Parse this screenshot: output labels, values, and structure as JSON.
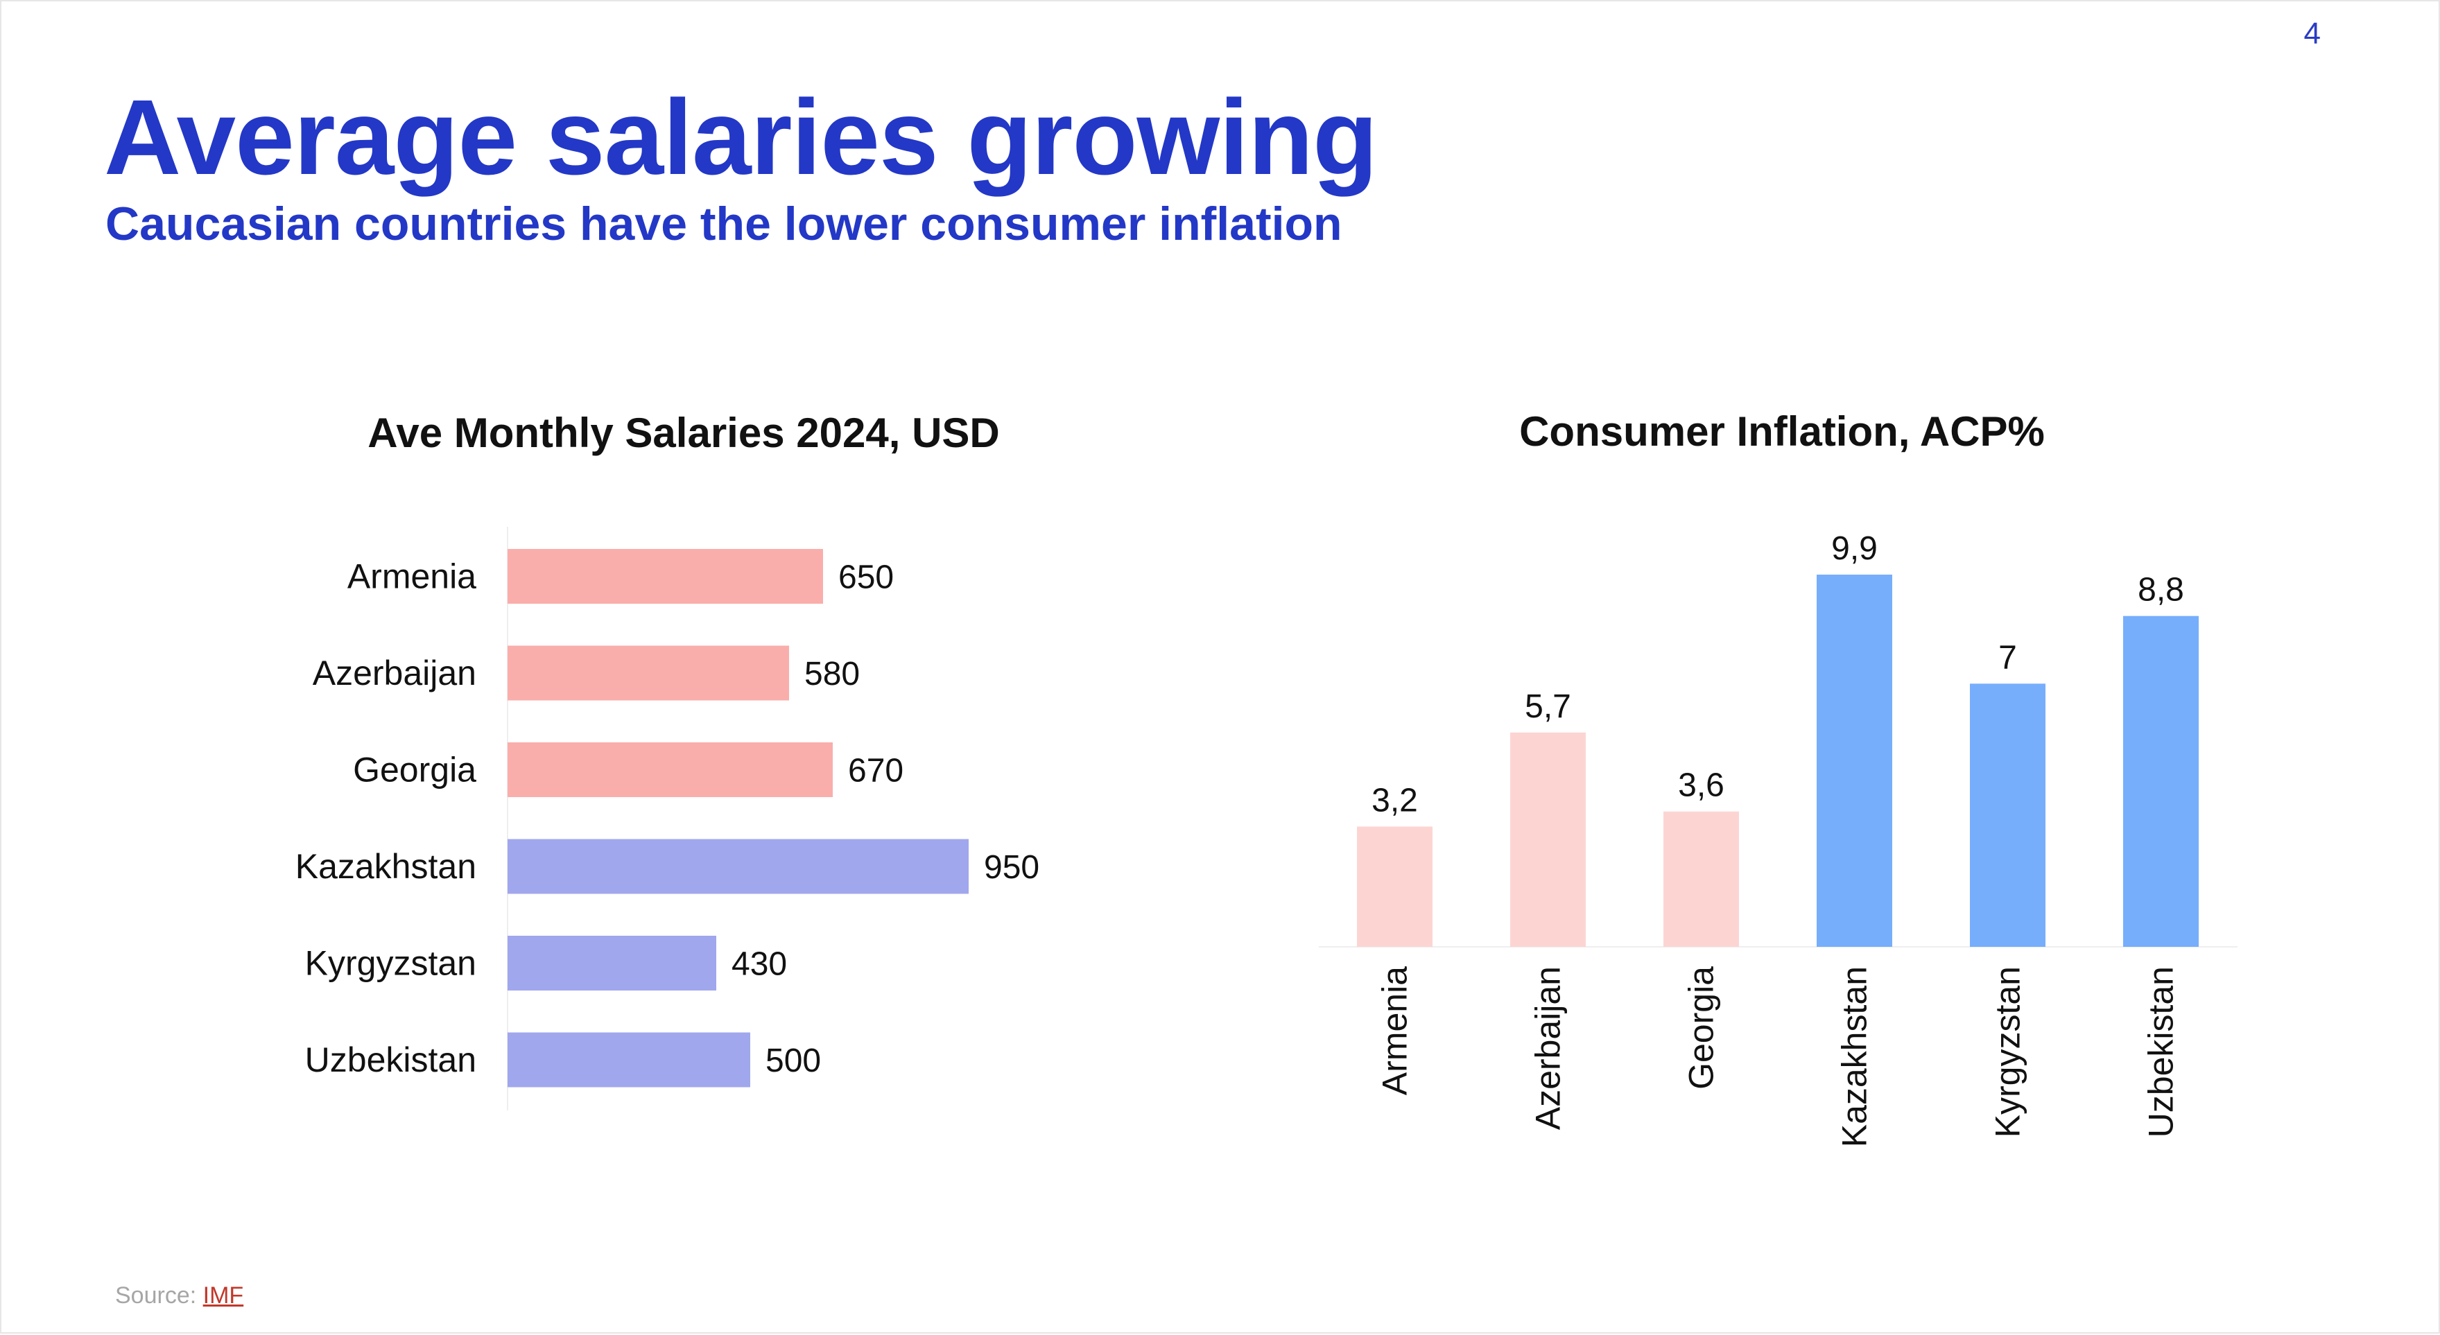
{
  "page_number": "4",
  "title": "Average salaries growing",
  "subtitle": "Caucasian countries have the lower consumer inflation",
  "source": {
    "label": "Source:",
    "link_text": "IMF"
  },
  "colors": {
    "caucasus_salary": "#f9aeab",
    "central_asia_salary": "#a0a7ec",
    "caucasus_inflation": "#fcd5d3",
    "central_asia_inflation": "#76aefc",
    "heading": "#2338c7"
  },
  "chart_data": [
    {
      "type": "bar",
      "orientation": "horizontal",
      "title": "Ave Monthly Salaries 2024, USD",
      "categories": [
        "Armenia",
        "Azerbaijan",
        "Georgia",
        "Kazakhstan",
        "Kyrgyzstan",
        "Uzbekistan"
      ],
      "values": [
        650,
        580,
        670,
        950,
        430,
        500
      ],
      "value_labels": [
        "650",
        "580",
        "670",
        "950",
        "430",
        "500"
      ],
      "groups": [
        "caucasus",
        "caucasus",
        "caucasus",
        "central_asia",
        "central_asia",
        "central_asia"
      ],
      "xlim": [
        0,
        1000
      ],
      "grid": false
    },
    {
      "type": "bar",
      "orientation": "vertical",
      "title": "Consumer Inflation, ACP%",
      "categories": [
        "Armenia",
        "Azerbaijan",
        "Georgia",
        "Kazakhstan",
        "Kyrgyzstan",
        "Uzbekistan"
      ],
      "values": [
        3.2,
        5.7,
        3.6,
        9.9,
        7,
        8.8
      ],
      "value_labels": [
        "3,2",
        "5,7",
        "3,6",
        "9,9",
        "7",
        "8,8"
      ],
      "groups": [
        "caucasus",
        "caucasus",
        "caucasus",
        "central_asia",
        "central_asia",
        "central_asia"
      ],
      "ylim": [
        0,
        10
      ],
      "grid": false
    }
  ]
}
